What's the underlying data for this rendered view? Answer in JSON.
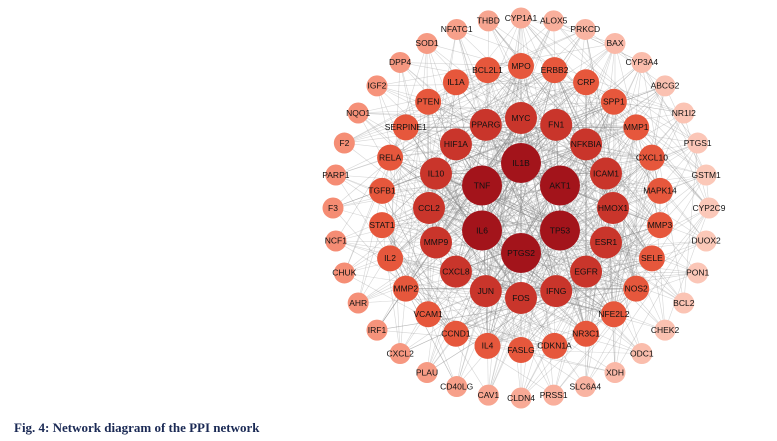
{
  "caption": "Fig. 4: Network diagram of the PPI network",
  "nodes": [
    "IL1B",
    "AKT1",
    "TP53",
    "PTGS2",
    "IL6",
    "TNF",
    "MYC",
    "FN1",
    "NFKBIA",
    "ICAM1",
    "HMOX1",
    "ESR1",
    "EGFR",
    "IFNG",
    "FOS",
    "JUN",
    "CXCL8",
    "MMP9",
    "CCL2",
    "IL10",
    "HIF1A",
    "PPARG",
    "MPO",
    "ERBB2",
    "CRP",
    "SPP1",
    "MMP1",
    "CXCL10",
    "MAPK14",
    "MMP3",
    "SELE",
    "NOS2",
    "NFE2L2",
    "NR3C1",
    "CDKN1A",
    "FASLG",
    "IL4",
    "CCND1",
    "VCAM1",
    "MMP2",
    "IL2",
    "STAT1",
    "TGFB1",
    "RELA",
    "SERPINE1",
    "PTEN",
    "IL1A",
    "BCL2L1",
    "CYP1A1",
    "ALOX5",
    "PRKCD",
    "BAX",
    "CYP3A4",
    "ABCG2",
    "NR1I2",
    "PTGS1",
    "GSTM1",
    "CYP2C9",
    "DUOX2",
    "PON1",
    "BCL2",
    "CHEK2",
    "ODC1",
    "XDH",
    "SLC6A4",
    "PRSS1",
    "CLDN4",
    "CAV1",
    "CD40LG",
    "PLAU",
    "CXCL2",
    "IRF1",
    "AHR",
    "CHUK",
    "NCF1",
    "F3",
    "PARP1",
    "F2",
    "NQO1",
    "IGF2",
    "DPP4",
    "SOD1",
    "NFATC1",
    "THBD"
  ]
}
